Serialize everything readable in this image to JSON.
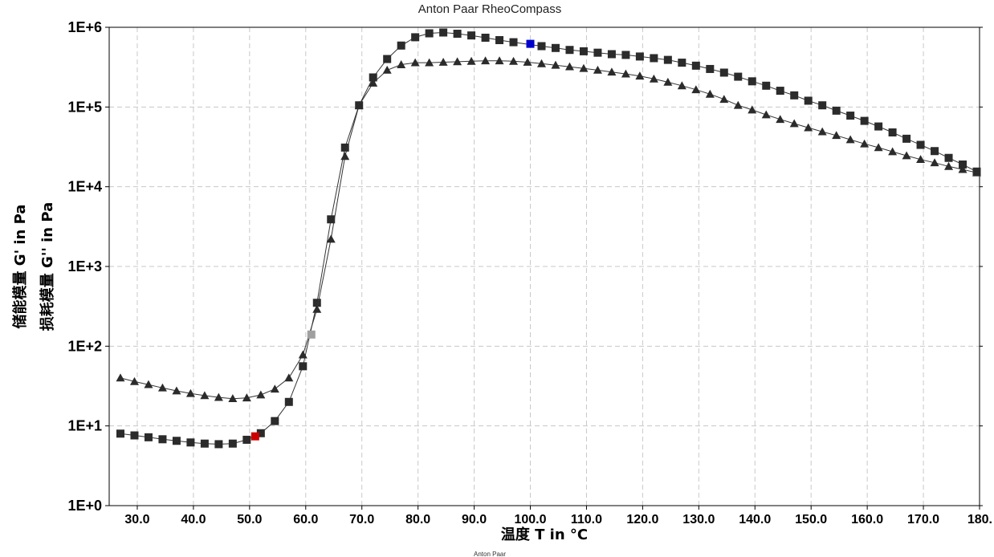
{
  "header": {
    "title": "Anton Paar RheoCompass"
  },
  "footer": {
    "text": "Anton Paar"
  },
  "chart_data": {
    "type": "scatter",
    "title": "Anton Paar RheoCompass",
    "xlabel": "温度 T in °C",
    "ylabel_primary": "储能模量 G' in Pa",
    "ylabel_secondary": "损耗模量 G'' in Pa",
    "xlim": [
      25,
      180
    ],
    "ylim": [
      1,
      1000000
    ],
    "yscale": "log",
    "grid": true,
    "x_ticks": [
      "30.0",
      "40.0",
      "50.0",
      "60.0",
      "70.0",
      "80.0",
      "90.0",
      "100.0",
      "110.0",
      "120.0",
      "130.0",
      "140.0",
      "150.0",
      "160.0",
      "170.0",
      "180."
    ],
    "x_tick_values": [
      30,
      40,
      50,
      60,
      70,
      80,
      90,
      100,
      110,
      120,
      130,
      140,
      150,
      160,
      170,
      180
    ],
    "y_ticks": [
      "1E+0",
      "1E+1",
      "1E+2",
      "1E+3",
      "1E+4",
      "1E+5",
      "1E+6"
    ],
    "y_tick_values": [
      1,
      10,
      100,
      1000,
      10000,
      100000,
      1000000
    ],
    "series": [
      {
        "marker": "square",
        "color": "#2b2b2b",
        "x": [
          27.0,
          29.5,
          32.0,
          34.5,
          37.0,
          39.5,
          42.0,
          44.5,
          47.0,
          49.5,
          52.0,
          54.5,
          57.0,
          59.5,
          62.0,
          64.5,
          67.0,
          69.5,
          72.0,
          74.5,
          77.0,
          79.5,
          82.0,
          84.5,
          87.0,
          89.5,
          92.0,
          94.5,
          97.0,
          102.0,
          104.5,
          107.0,
          109.5,
          112.0,
          114.5,
          117.0,
          119.5,
          122.0,
          124.5,
          127.0,
          129.5,
          132.0,
          134.5,
          137.0,
          139.5,
          142.0,
          144.5,
          147.0,
          149.5,
          152.0,
          154.5,
          157.0,
          159.5,
          162.0,
          164.5,
          167.0,
          169.5,
          172.0,
          174.5,
          177.0,
          179.5
        ],
        "y": [
          8.0,
          7.6,
          7.2,
          6.8,
          6.5,
          6.2,
          6.0,
          5.9,
          6.0,
          6.7,
          8.1,
          11.5,
          20,
          56,
          350,
          3900,
          31000,
          105000,
          235000,
          400000,
          590000,
          750000,
          840000,
          860000,
          830000,
          790000,
          740000,
          690000,
          650000,
          580000,
          550000,
          520000,
          500000,
          480000,
          460000,
          450000,
          430000,
          410000,
          390000,
          360000,
          330000,
          300000,
          270000,
          240000,
          210000,
          185000,
          160000,
          140000,
          120000,
          105000,
          90000,
          78000,
          67000,
          57000,
          48000,
          40000,
          33500,
          28000,
          23000,
          19000,
          15500
        ]
      },
      {
        "marker": "triangle",
        "color": "#2b2b2b",
        "x": [
          27.0,
          29.5,
          32.0,
          34.5,
          37.0,
          39.5,
          42.0,
          44.5,
          47.0,
          49.5,
          52.0,
          54.5,
          57.0,
          59.5,
          62.0,
          64.5,
          67.0,
          69.5,
          72.0,
          74.5,
          77.0,
          79.5,
          82.0,
          84.5,
          87.0,
          89.5,
          92.0,
          94.5,
          97.0,
          99.5,
          102.0,
          104.5,
          107.0,
          109.5,
          112.0,
          114.5,
          117.0,
          119.5,
          122.0,
          124.5,
          127.0,
          129.5,
          132.0,
          134.5,
          137.0,
          139.5,
          142.0,
          144.5,
          147.0,
          149.5,
          152.0,
          154.5,
          157.0,
          159.5,
          162.0,
          164.5,
          167.0,
          169.5,
          172.0,
          174.5,
          177.0,
          179.5
        ],
        "y": [
          40,
          36,
          33,
          30,
          27.5,
          25.5,
          24,
          22.8,
          22,
          22.5,
          24.5,
          29,
          40,
          78,
          290,
          2200,
          24000,
          105000,
          200000,
          290000,
          340000,
          360000,
          360000,
          365000,
          370000,
          375000,
          380000,
          380000,
          375000,
          365000,
          350000,
          335000,
          320000,
          305000,
          290000,
          275000,
          260000,
          245000,
          225000,
          205000,
          185000,
          165000,
          145000,
          125000,
          105000,
          92000,
          80000,
          70000,
          62000,
          55000,
          49000,
          44000,
          39000,
          34500,
          31000,
          27500,
          24500,
          22000,
          20000,
          18000,
          16500,
          15000
        ]
      },
      {
        "marker": "square",
        "color": "#cc0000",
        "x": [
          51.0
        ],
        "y": [
          7.4
        ]
      },
      {
        "marker": "square",
        "color": "#a0a0a0",
        "x": [
          61.0
        ],
        "y": [
          140
        ]
      },
      {
        "marker": "square",
        "color": "#0000cc",
        "x": [
          100.0
        ],
        "y": [
          620000
        ]
      }
    ]
  }
}
